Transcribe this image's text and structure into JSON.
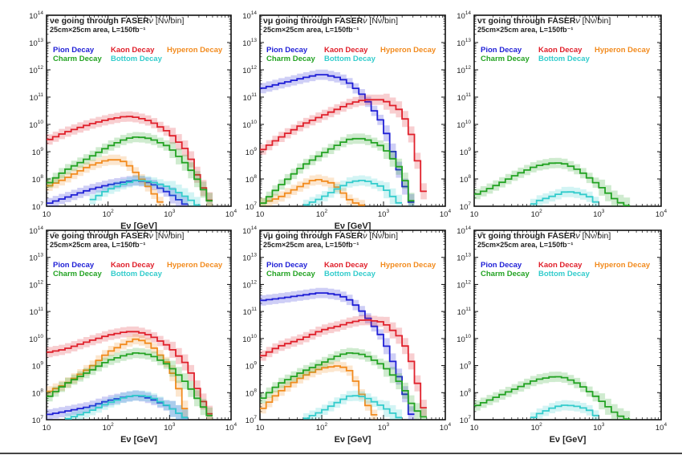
{
  "colors": {
    "pion": "#1f1fd6",
    "kaon": "#e0202b",
    "hyperon": "#f28b1e",
    "charm": "#23a323",
    "bottom": "#33cccc"
  },
  "legend_rows": [
    [
      {
        "key": "pion",
        "label": "Pion Decay"
      },
      {
        "key": "kaon",
        "label": "Kaon Decay"
      },
      {
        "key": "hyperon",
        "label": "Hyperon Decay"
      }
    ],
    [
      {
        "key": "charm",
        "label": "Charm Decay"
      },
      {
        "key": "bottom",
        "label": "Bottom Decay"
      }
    ]
  ],
  "chart_data": [
    {
      "type": "line",
      "title_flavor": "νe",
      "title_rest": " going through FASER",
      "title_nu": "ν",
      "title_unit": " [Nν/bin]",
      "subtitle": "25cm×25cm area, L=150fb⁻¹",
      "xlabel": "Eν [GeV]",
      "xscale": "log",
      "yscale": "log",
      "xlim": [
        10,
        10000
      ],
      "ylim": [
        10000000,
        100000000000000
      ],
      "series": [
        {
          "name": "Pion Decay",
          "key": "pion",
          "x": [
            10,
            20,
            50,
            100,
            200,
            300,
            500,
            1000,
            2000
          ],
          "y": [
            12000000.0,
            20000000.0,
            40000000.0,
            60000000.0,
            80000000.0,
            90000000.0,
            70000000.0,
            30000000.0,
            10000000.0
          ]
        },
        {
          "name": "Kaon Decay",
          "key": "kaon",
          "x": [
            10,
            20,
            50,
            100,
            200,
            300,
            500,
            1000,
            2000,
            3000,
            5000
          ],
          "y": [
            2500000000.0,
            5000000000.0,
            10000000000.0,
            15000000000.0,
            20000000000.0,
            18000000000.0,
            13000000000.0,
            5000000000.0,
            1000000000.0,
            100000000.0,
            10000000.0
          ]
        },
        {
          "name": "Hyperon Decay",
          "key": "hyperon",
          "x": [
            10,
            20,
            50,
            100,
            150,
            200,
            300,
            500,
            800
          ],
          "y": [
            50000000.0,
            100000000.0,
            300000000.0,
            500000000.0,
            500000000.0,
            400000000.0,
            150000000.0,
            40000000.0,
            10000000.0
          ]
        },
        {
          "name": "Charm Decay",
          "key": "charm",
          "x": [
            10,
            20,
            50,
            100,
            200,
            300,
            500,
            1000,
            2000,
            3000,
            5000
          ],
          "y": [
            60000000.0,
            200000000.0,
            600000000.0,
            1500000000.0,
            3000000000.0,
            3500000000.0,
            3000000000.0,
            1500000000.0,
            300000000.0,
            80000000.0,
            10000000.0
          ]
        },
        {
          "name": "Bottom Decay",
          "key": "bottom",
          "x": [
            50,
            100,
            200,
            300,
            500,
            1000,
            2000,
            3000
          ],
          "y": [
            15000000.0,
            40000000.0,
            70000000.0,
            90000000.0,
            80000000.0,
            50000000.0,
            20000000.0,
            10000000.0
          ]
        }
      ]
    },
    {
      "type": "line",
      "title_flavor": "νμ",
      "title_rest": " going through FASER",
      "title_nu": "ν",
      "title_unit": " [Nν/bin]",
      "subtitle": "25cm×25cm area, L=150fb⁻¹",
      "xlabel": "Eν [GeV]",
      "xscale": "log",
      "yscale": "log",
      "xlim": [
        10,
        10000
      ],
      "ylim": [
        10000000,
        100000000000000
      ],
      "series": [
        {
          "name": "Pion Decay",
          "key": "pion",
          "x": [
            10,
            20,
            50,
            100,
            200,
            300,
            500,
            1000,
            2000,
            3000
          ],
          "y": [
            200000000000.0,
            300000000000.0,
            500000000000.0,
            700000000000.0,
            500000000000.0,
            300000000000.0,
            100000000000.0,
            10000000000.0,
            100000000.0,
            10000000.0
          ]
        },
        {
          "name": "Kaon Decay",
          "key": "kaon",
          "x": [
            10,
            20,
            50,
            100,
            200,
            300,
            500,
            1000,
            2000,
            3000,
            5000
          ],
          "y": [
            1000000000.0,
            3000000000.0,
            10000000000.0,
            20000000000.0,
            40000000000.0,
            60000000000.0,
            80000000000.0,
            80000000000.0,
            30000000000.0,
            3000000000.0,
            10000000.0
          ]
        },
        {
          "name": "Hyperon Decay",
          "key": "hyperon",
          "x": [
            10,
            20,
            50,
            80,
            150,
            200,
            300,
            500
          ],
          "y": [
            12000000.0,
            20000000.0,
            60000000.0,
            100000000.0,
            70000000.0,
            40000000.0,
            15000000.0,
            10000000.0
          ]
        },
        {
          "name": "Charm Decay",
          "key": "charm",
          "x": [
            10,
            20,
            50,
            100,
            200,
            300,
            500,
            1000,
            2000,
            3000
          ],
          "y": [
            10000000.0,
            50000000.0,
            300000000.0,
            800000000.0,
            2000000000.0,
            3000000000.0,
            3000000000.0,
            1500000000.0,
            200000000.0,
            10000000.0
          ]
        },
        {
          "name": "Bottom Decay",
          "key": "bottom",
          "x": [
            50,
            100,
            200,
            300,
            500,
            1000,
            1500,
            2000
          ],
          "y": [
            10000000.0,
            20000000.0,
            50000000.0,
            80000000.0,
            90000000.0,
            50000000.0,
            20000000.0,
            10000000.0
          ]
        }
      ]
    },
    {
      "type": "line",
      "title_flavor": "ντ",
      "title_rest": " going through FASER",
      "title_nu": "ν",
      "title_unit": " [Nν/bin]",
      "subtitle": "25cm×25cm area, L=150fb⁻¹",
      "xlabel": "",
      "xscale": "log",
      "yscale": "log",
      "xlim": [
        10,
        10000
      ],
      "ylim": [
        10000000,
        100000000000000
      ],
      "series": [
        {
          "name": "Charm Decay",
          "key": "charm",
          "x": [
            10,
            20,
            50,
            100,
            200,
            300,
            500,
            1000,
            2000,
            3000
          ],
          "y": [
            25000000.0,
            50000000.0,
            150000000.0,
            300000000.0,
            400000000.0,
            350000000.0,
            200000000.0,
            60000000.0,
            15000000.0,
            10000000.0
          ]
        },
        {
          "name": "Bottom Decay",
          "key": "bottom",
          "x": [
            80,
            100,
            200,
            300,
            500,
            800,
            1000
          ],
          "y": [
            10000000.0,
            15000000.0,
            25000000.0,
            35000000.0,
            30000000.0,
            20000000.0,
            10000000.0
          ]
        }
      ]
    },
    {
      "type": "line",
      "title_flavor": "ν̄e",
      "title_rest": " going through FASER",
      "title_nu": "ν",
      "title_unit": " [Nν/bin]",
      "subtitle": "25cm×25cm area, L=150fb⁻¹",
      "xlabel": "Eν [GeV]",
      "xscale": "log",
      "yscale": "log",
      "xlim": [
        10,
        10000
      ],
      "ylim": [
        10000000,
        100000000000000
      ],
      "series": [
        {
          "name": "Pion Decay",
          "key": "pion",
          "x": [
            10,
            20,
            50,
            100,
            200,
            300,
            500,
            1000,
            2000
          ],
          "y": [
            15000000.0,
            20000000.0,
            30000000.0,
            50000000.0,
            70000000.0,
            80000000.0,
            60000000.0,
            30000000.0,
            10000000.0
          ]
        },
        {
          "name": "Kaon Decay",
          "key": "kaon",
          "x": [
            10,
            20,
            50,
            100,
            200,
            300,
            500,
            1000,
            2000,
            3000,
            5000
          ],
          "y": [
            3000000000.0,
            4000000000.0,
            8000000000.0,
            13000000000.0,
            18000000000.0,
            18000000000.0,
            13000000000.0,
            5000000000.0,
            1000000000.0,
            100000000.0,
            10000000.0
          ]
        },
        {
          "name": "Hyperon Decay",
          "key": "hyperon",
          "x": [
            10,
            20,
            50,
            100,
            200,
            300,
            500,
            1000,
            1500,
            2000
          ],
          "y": [
            100000000.0,
            200000000.0,
            800000000.0,
            3000000000.0,
            7000000000.0,
            10000000000.0,
            6000000000.0,
            1000000000.0,
            100000000.0,
            10000000.0
          ]
        },
        {
          "name": "Charm Decay",
          "key": "charm",
          "x": [
            10,
            20,
            50,
            100,
            200,
            300,
            500,
            1000,
            2000,
            3000,
            5000
          ],
          "y": [
            60000000.0,
            200000000.0,
            600000000.0,
            1500000000.0,
            2500000000.0,
            3000000000.0,
            2500000000.0,
            1000000000.0,
            200000000.0,
            50000000.0,
            10000000.0
          ]
        },
        {
          "name": "Bottom Decay",
          "key": "bottom",
          "x": [
            20,
            50,
            100,
            200,
            300,
            500,
            1000,
            2000
          ],
          "y": [
            10000000.0,
            20000000.0,
            40000000.0,
            70000000.0,
            80000000.0,
            70000000.0,
            30000000.0,
            10000000.0
          ]
        }
      ]
    },
    {
      "type": "line",
      "title_flavor": "ν̄μ",
      "title_rest": " going through FASER",
      "title_nu": "ν",
      "title_unit": " [Nν/bin]",
      "subtitle": "25cm×25cm area, L=150fb⁻¹",
      "xlabel": "Eν [GeV]",
      "xscale": "log",
      "yscale": "log",
      "xlim": [
        10,
        10000
      ],
      "ylim": [
        10000000,
        100000000000000
      ],
      "series": [
        {
          "name": "Pion Decay",
          "key": "pion",
          "x": [
            10,
            20,
            50,
            100,
            200,
            300,
            500,
            1000,
            2000,
            3000
          ],
          "y": [
            250000000000.0,
            300000000000.0,
            400000000000.0,
            500000000000.0,
            400000000000.0,
            250000000000.0,
            80000000000.0,
            10000000000.0,
            200000000.0,
            10000000.0
          ]
        },
        {
          "name": "Kaon Decay",
          "key": "kaon",
          "x": [
            10,
            20,
            50,
            100,
            200,
            300,
            500,
            1000,
            2000,
            3000,
            5000
          ],
          "y": [
            2000000000.0,
            5000000000.0,
            10000000000.0,
            20000000000.0,
            30000000000.0,
            40000000000.0,
            50000000000.0,
            40000000000.0,
            10000000000.0,
            1000000000.0,
            10000000.0
          ]
        },
        {
          "name": "Hyperon Decay",
          "key": "hyperon",
          "x": [
            10,
            20,
            50,
            100,
            200,
            300,
            500,
            800
          ],
          "y": [
            20000000.0,
            100000000.0,
            400000000.0,
            800000000.0,
            1000000000.0,
            600000000.0,
            50000000.0,
            10000000.0
          ]
        },
        {
          "name": "Charm Decay",
          "key": "charm",
          "x": [
            10,
            20,
            50,
            100,
            200,
            300,
            500,
            1000,
            2000,
            3000,
            5000
          ],
          "y": [
            50000000.0,
            200000000.0,
            600000000.0,
            1200000000.0,
            2500000000.0,
            3000000000.0,
            2500000000.0,
            1000000000.0,
            200000000.0,
            30000000.0,
            10000000.0
          ]
        },
        {
          "name": "Bottom Decay",
          "key": "bottom",
          "x": [
            50,
            100,
            200,
            300,
            500,
            1000,
            2000
          ],
          "y": [
            10000000.0,
            20000000.0,
            50000000.0,
            80000000.0,
            70000000.0,
            30000000.0,
            10000000.0
          ]
        }
      ]
    },
    {
      "type": "line",
      "title_flavor": "ν̄τ",
      "title_rest": " going through FASER",
      "title_nu": "ν",
      "title_unit": " [Nν/bin]",
      "subtitle": "25cm×25cm area, L=150fb⁻¹",
      "xlabel": "Eν [GeV]",
      "xscale": "log",
      "yscale": "log",
      "xlim": [
        10,
        10000
      ],
      "ylim": [
        10000000,
        100000000000000
      ],
      "series": [
        {
          "name": "Charm Decay",
          "key": "charm",
          "x": [
            10,
            20,
            50,
            100,
            200,
            300,
            500,
            1000,
            2000,
            3000
          ],
          "y": [
            30000000.0,
            60000000.0,
            150000000.0,
            300000000.0,
            400000000.0,
            350000000.0,
            200000000.0,
            60000000.0,
            15000000.0,
            10000000.0
          ]
        },
        {
          "name": "Bottom Decay",
          "key": "bottom",
          "x": [
            80,
            100,
            200,
            300,
            500,
            800,
            1000
          ],
          "y": [
            10000000.0,
            15000000.0,
            30000000.0,
            35000000.0,
            30000000.0,
            20000000.0,
            10000000.0
          ]
        }
      ]
    }
  ]
}
